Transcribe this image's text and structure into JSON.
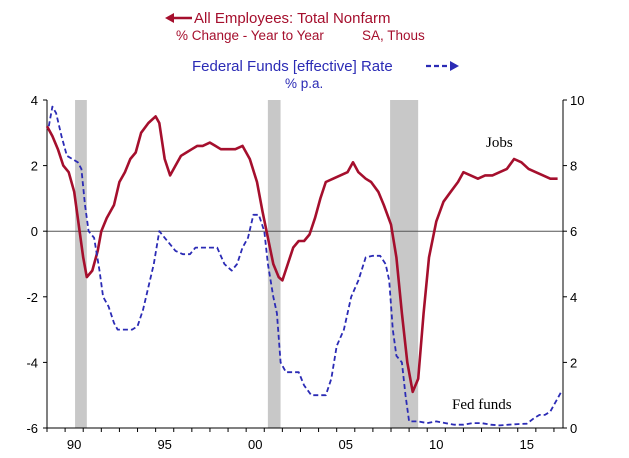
{
  "chart_data": {
    "type": "line",
    "legend": {
      "jobs_title": "All Employees: Total Nonfarm",
      "jobs_sub1": "% Change - Year to Year",
      "jobs_sub2": "SA, Thous",
      "fed_title": "Federal Funds [effective] Rate",
      "fed_sub": "% p.a.",
      "placement": "top-center"
    },
    "x_ticks": [
      "90",
      "95",
      "00",
      "05",
      "10",
      "15"
    ],
    "x_tick_years": [
      1990,
      1995,
      2000,
      2005,
      2010,
      2015
    ],
    "xlim": [
      1989,
      2017.5
    ],
    "left_axis": {
      "ticks": [
        "4",
        "2",
        "0",
        "-2",
        "-4",
        "-6"
      ],
      "ylim": [
        -6,
        4
      ]
    },
    "right_axis": {
      "ticks": [
        "10",
        "8",
        "6",
        "4",
        "2",
        "0"
      ],
      "ylim": [
        0,
        10
      ]
    },
    "zero_line": 0,
    "recessions": [
      [
        1990.55,
        1991.2
      ],
      [
        2001.2,
        2001.9
      ],
      [
        2007.95,
        2009.5
      ]
    ],
    "annotations": {
      "jobs_label": "Jobs",
      "fed_label": "Fed funds"
    },
    "colors": {
      "jobs": "#a50f2d",
      "fed": "#2b2bb5",
      "recession": "#c8c8c8"
    },
    "series": [
      {
        "name": "All Employees: Total Nonfarm",
        "axis": "left",
        "points": [
          [
            1989.0,
            3.2
          ],
          [
            1989.3,
            2.9
          ],
          [
            1989.6,
            2.5
          ],
          [
            1989.9,
            2.0
          ],
          [
            1990.2,
            1.8
          ],
          [
            1990.5,
            1.2
          ],
          [
            1990.8,
            0.0
          ],
          [
            1991.0,
            -0.8
          ],
          [
            1991.2,
            -1.4
          ],
          [
            1991.5,
            -1.2
          ],
          [
            1991.8,
            -0.6
          ],
          [
            1992.0,
            0.0
          ],
          [
            1992.3,
            0.4
          ],
          [
            1992.7,
            0.8
          ],
          [
            1993.0,
            1.5
          ],
          [
            1993.3,
            1.8
          ],
          [
            1993.6,
            2.2
          ],
          [
            1993.9,
            2.4
          ],
          [
            1994.2,
            3.0
          ],
          [
            1994.6,
            3.3
          ],
          [
            1995.0,
            3.5
          ],
          [
            1995.2,
            3.3
          ],
          [
            1995.5,
            2.2
          ],
          [
            1995.8,
            1.7
          ],
          [
            1996.1,
            2.0
          ],
          [
            1996.4,
            2.3
          ],
          [
            1996.7,
            2.4
          ],
          [
            1997.0,
            2.5
          ],
          [
            1997.3,
            2.6
          ],
          [
            1997.6,
            2.6
          ],
          [
            1998.0,
            2.7
          ],
          [
            1998.3,
            2.6
          ],
          [
            1998.6,
            2.5
          ],
          [
            1999.0,
            2.5
          ],
          [
            1999.4,
            2.5
          ],
          [
            1999.8,
            2.6
          ],
          [
            2000.2,
            2.2
          ],
          [
            2000.6,
            1.5
          ],
          [
            2000.9,
            0.6
          ],
          [
            2001.2,
            -0.2
          ],
          [
            2001.5,
            -1.0
          ],
          [
            2001.8,
            -1.4
          ],
          [
            2002.0,
            -1.5
          ],
          [
            2002.3,
            -1.0
          ],
          [
            2002.6,
            -0.5
          ],
          [
            2002.9,
            -0.3
          ],
          [
            2003.2,
            -0.3
          ],
          [
            2003.5,
            -0.1
          ],
          [
            2003.8,
            0.4
          ],
          [
            2004.1,
            1.0
          ],
          [
            2004.4,
            1.5
          ],
          [
            2004.8,
            1.6
          ],
          [
            2005.2,
            1.7
          ],
          [
            2005.6,
            1.8
          ],
          [
            2005.9,
            2.1
          ],
          [
            2006.2,
            1.8
          ],
          [
            2006.6,
            1.6
          ],
          [
            2006.9,
            1.5
          ],
          [
            2007.3,
            1.2
          ],
          [
            2007.6,
            0.8
          ],
          [
            2008.0,
            0.2
          ],
          [
            2008.3,
            -0.8
          ],
          [
            2008.6,
            -2.5
          ],
          [
            2008.9,
            -4.0
          ],
          [
            2009.2,
            -4.9
          ],
          [
            2009.5,
            -4.5
          ],
          [
            2009.8,
            -2.5
          ],
          [
            2010.1,
            -0.8
          ],
          [
            2010.5,
            0.3
          ],
          [
            2010.9,
            0.9
          ],
          [
            2011.3,
            1.2
          ],
          [
            2011.7,
            1.5
          ],
          [
            2012.0,
            1.8
          ],
          [
            2012.4,
            1.7
          ],
          [
            2012.8,
            1.6
          ],
          [
            2013.2,
            1.7
          ],
          [
            2013.6,
            1.7
          ],
          [
            2014.0,
            1.8
          ],
          [
            2014.4,
            1.9
          ],
          [
            2014.8,
            2.2
          ],
          [
            2015.2,
            2.1
          ],
          [
            2015.6,
            1.9
          ],
          [
            2016.0,
            1.8
          ],
          [
            2016.4,
            1.7
          ],
          [
            2016.8,
            1.6
          ],
          [
            2017.2,
            1.6
          ]
        ]
      },
      {
        "name": "Federal Funds [effective] Rate",
        "axis": "right",
        "points": [
          [
            1989.1,
            9.2
          ],
          [
            1989.3,
            9.8
          ],
          [
            1989.5,
            9.6
          ],
          [
            1989.8,
            8.9
          ],
          [
            1990.1,
            8.3
          ],
          [
            1990.4,
            8.2
          ],
          [
            1990.7,
            8.1
          ],
          [
            1990.9,
            7.9
          ],
          [
            1991.1,
            6.8
          ],
          [
            1991.3,
            6.0
          ],
          [
            1991.6,
            5.8
          ],
          [
            1991.9,
            4.8
          ],
          [
            1992.1,
            4.0
          ],
          [
            1992.4,
            3.7
          ],
          [
            1992.7,
            3.2
          ],
          [
            1992.9,
            3.0
          ],
          [
            1993.3,
            3.0
          ],
          [
            1993.7,
            3.0
          ],
          [
            1994.0,
            3.1
          ],
          [
            1994.3,
            3.6
          ],
          [
            1994.6,
            4.3
          ],
          [
            1994.9,
            5.0
          ],
          [
            1995.2,
            6.0
          ],
          [
            1995.5,
            5.8
          ],
          [
            1995.8,
            5.6
          ],
          [
            1996.1,
            5.4
          ],
          [
            1996.5,
            5.3
          ],
          [
            1996.9,
            5.3
          ],
          [
            1997.2,
            5.5
          ],
          [
            1997.6,
            5.5
          ],
          [
            1998.0,
            5.5
          ],
          [
            1998.4,
            5.5
          ],
          [
            1998.8,
            5.0
          ],
          [
            1999.2,
            4.8
          ],
          [
            1999.5,
            5.0
          ],
          [
            1999.8,
            5.5
          ],
          [
            2000.1,
            5.8
          ],
          [
            2000.4,
            6.5
          ],
          [
            2000.7,
            6.5
          ],
          [
            2001.0,
            6.0
          ],
          [
            2001.2,
            5.0
          ],
          [
            2001.5,
            4.0
          ],
          [
            2001.7,
            3.5
          ],
          [
            2001.9,
            2.0
          ],
          [
            2002.2,
            1.7
          ],
          [
            2002.6,
            1.7
          ],
          [
            2002.9,
            1.7
          ],
          [
            2003.2,
            1.3
          ],
          [
            2003.6,
            1.0
          ],
          [
            2004.0,
            1.0
          ],
          [
            2004.4,
            1.0
          ],
          [
            2004.7,
            1.5
          ],
          [
            2005.0,
            2.5
          ],
          [
            2005.4,
            3.0
          ],
          [
            2005.8,
            4.0
          ],
          [
            2006.2,
            4.5
          ],
          [
            2006.6,
            5.2
          ],
          [
            2007.0,
            5.25
          ],
          [
            2007.4,
            5.25
          ],
          [
            2007.7,
            5.0
          ],
          [
            2007.9,
            4.5
          ],
          [
            2008.1,
            3.0
          ],
          [
            2008.3,
            2.2
          ],
          [
            2008.6,
            2.0
          ],
          [
            2008.8,
            1.0
          ],
          [
            2009.0,
            0.2
          ],
          [
            2009.5,
            0.2
          ],
          [
            2010.0,
            0.15
          ],
          [
            2010.5,
            0.2
          ],
          [
            2011.0,
            0.15
          ],
          [
            2011.5,
            0.1
          ],
          [
            2012.0,
            0.1
          ],
          [
            2012.5,
            0.15
          ],
          [
            2013.0,
            0.15
          ],
          [
            2013.5,
            0.1
          ],
          [
            2014.0,
            0.08
          ],
          [
            2014.5,
            0.1
          ],
          [
            2015.0,
            0.12
          ],
          [
            2015.5,
            0.13
          ],
          [
            2015.9,
            0.3
          ],
          [
            2016.2,
            0.4
          ],
          [
            2016.5,
            0.4
          ],
          [
            2016.8,
            0.5
          ],
          [
            2017.0,
            0.7
          ],
          [
            2017.2,
            0.9
          ],
          [
            2017.4,
            1.1
          ]
        ]
      }
    ]
  }
}
